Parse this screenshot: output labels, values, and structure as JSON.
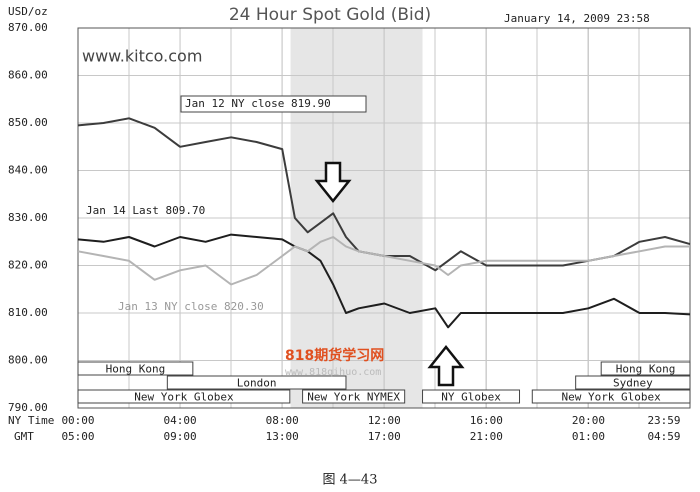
{
  "chart_data": {
    "type": "line",
    "title": "24 Hour Spot Gold (Bid)",
    "y_label": "USD/oz",
    "timestamp": "January 14, 2009 23:58",
    "site": "www.kitco.com",
    "x_row_label": "NY Time",
    "x2_row_label": "GMT",
    "x": [
      0,
      1,
      2,
      3,
      4,
      5,
      6,
      7,
      8,
      8.5,
      9,
      9.5,
      10,
      10.5,
      11,
      12,
      13,
      14,
      14.5,
      15,
      16,
      17,
      18,
      19,
      20,
      21,
      22,
      23,
      23.98
    ],
    "series": [
      {
        "color": "#3c3c3c",
        "values": [
          849.5,
          850,
          851,
          849,
          845,
          846,
          847,
          846,
          844.5,
          830,
          827,
          829,
          831,
          826,
          823,
          822,
          822,
          819,
          821,
          823,
          820,
          820,
          820,
          820,
          821,
          822,
          825,
          826,
          824.5
        ]
      },
      {
        "color": "#1e1e1e",
        "values": [
          825.5,
          825,
          826,
          824,
          826,
          825,
          826.5,
          826,
          825.5,
          824,
          823,
          821,
          816,
          810,
          811,
          812,
          810,
          811,
          807,
          810,
          810,
          810,
          810,
          810,
          811,
          813,
          810,
          810,
          809.7
        ]
      },
      {
        "color": "#b4b4b4",
        "values": [
          823,
          822,
          821,
          817,
          819,
          820,
          816,
          818,
          822,
          824,
          823,
          825,
          826,
          824,
          823,
          822,
          821,
          820,
          818,
          820,
          821,
          821,
          821,
          821,
          821,
          822,
          823,
          824,
          824
        ]
      }
    ],
    "annotations": [
      {
        "text": "Jan 12 NY close 819.90"
      },
      {
        "text": "Jan 14 Last 809.70"
      },
      {
        "text": "Jan 13 NY close 820.30"
      }
    ],
    "shade": [
      8.33,
      13.5
    ],
    "sessions": [
      {
        "label": "Hong Kong",
        "row": 0,
        "start": 0,
        "end": 4.5
      },
      {
        "label": "Hong Kong",
        "row": 0,
        "start": 20.5,
        "end": 23.98
      },
      {
        "label": "London",
        "row": 1,
        "start": 3.5,
        "end": 10.5
      },
      {
        "label": "Sydney",
        "row": 1,
        "start": 19.5,
        "end": 23.98
      },
      {
        "label": "New York Globex",
        "row": 2,
        "start": 0,
        "end": 8.3
      },
      {
        "label": "New York NYMEX",
        "row": 2,
        "start": 8.8,
        "end": 12.8
      },
      {
        "label": "NY Globex",
        "row": 2,
        "start": 13.5,
        "end": 17.3
      },
      {
        "label": "New York Globex",
        "row": 2,
        "start": 17.8,
        "end": 23.98
      }
    ],
    "xlim": [
      0,
      23.98
    ],
    "xticks": [
      {
        "value": 0,
        "label": "00:00"
      },
      {
        "value": 4,
        "label": "04:00"
      },
      {
        "value": 8,
        "label": "08:00"
      },
      {
        "value": 12,
        "label": "12:00"
      },
      {
        "value": 16,
        "label": "16:00"
      },
      {
        "value": 20,
        "label": "20:00"
      },
      {
        "value": 23.98,
        "label": "23:59"
      }
    ],
    "x2_labels": [
      "05:00",
      "09:00",
      "13:00",
      "17:00",
      "21:00",
      "01:00",
      "04:59"
    ],
    "ylim": [
      790,
      870
    ],
    "yticks": [
      {
        "value": 790,
        "label": "790.00"
      },
      {
        "value": 800,
        "label": "800.00"
      },
      {
        "value": 810,
        "label": "810.00"
      },
      {
        "value": 820,
        "label": "820.00"
      },
      {
        "value": 830,
        "label": "830.00"
      },
      {
        "value": 840,
        "label": "840.00"
      },
      {
        "value": 850,
        "label": "850.00"
      },
      {
        "value": 860,
        "label": "860.00"
      },
      {
        "value": 870,
        "label": "870.00"
      }
    ],
    "grid": true
  },
  "watermark": {
    "name": "818期货学习网",
    "url": "www.818qihuo.com"
  },
  "caption": "图 4—43"
}
